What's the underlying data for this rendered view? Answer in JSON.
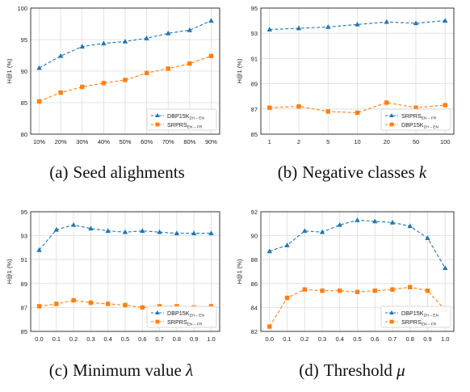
{
  "chart_data": [
    {
      "type": "line",
      "categories": [
        "10%",
        "20%",
        "30%",
        "40%",
        "50%",
        "60%",
        "70%",
        "80%",
        "90%"
      ],
      "ylabel": "H@1 (%)",
      "ylim": [
        80,
        100
      ],
      "yticks": [
        "80",
        "85",
        "90",
        "95",
        "100"
      ],
      "legend_position": "bottom-right",
      "series": [
        {
          "name_main": "DBP15K",
          "name_sub": "ZH – EN",
          "color": "#1f77b4",
          "marker": "triangle",
          "values": [
            90.5,
            92.4,
            93.9,
            94.4,
            94.7,
            95.2,
            96.0,
            96.5,
            98.0
          ]
        },
        {
          "name_main": "SRPRS",
          "name_sub": "EN – FR",
          "color": "#ff7f0e",
          "marker": "square",
          "values": [
            85.2,
            86.6,
            87.5,
            88.1,
            88.6,
            89.7,
            90.4,
            91.2,
            92.4
          ]
        }
      ],
      "caption": {
        "tag": "(a)",
        "text": "Seed alighments",
        "symbol": ""
      }
    },
    {
      "type": "line",
      "categories": [
        "1",
        "2",
        "5",
        "10",
        "20",
        "50",
        "100"
      ],
      "ylabel": "H@1 (%)",
      "ylim": [
        85,
        95
      ],
      "yticks": [
        "85",
        "87",
        "89",
        "91",
        "93",
        "95"
      ],
      "legend_position": "bottom-right",
      "series": [
        {
          "name_main": "SRPRS",
          "name_sub": "EN – FR",
          "color": "#1f77b4",
          "marker": "triangle",
          "values": [
            93.3,
            93.4,
            93.5,
            93.7,
            93.9,
            93.8,
            94.0
          ]
        },
        {
          "name_main": "DBP15K",
          "name_sub": "ZH – EN",
          "color": "#ff7f0e",
          "marker": "square",
          "values": [
            87.1,
            87.2,
            86.8,
            86.7,
            87.5,
            87.1,
            87.3
          ]
        }
      ],
      "caption": {
        "tag": "(b)",
        "text": "Negative classes ",
        "symbol": "k"
      }
    },
    {
      "type": "line",
      "categories": [
        "0.0",
        "0.1",
        "0.2",
        "0.3",
        "0.4",
        "0.5",
        "0.6",
        "0.7",
        "0.8",
        "0.9",
        "1.0"
      ],
      "ylabel": "H@1 (%)",
      "ylim": [
        85,
        95
      ],
      "yticks": [
        "85",
        "87",
        "89",
        "91",
        "93",
        "95"
      ],
      "legend_position": "bottom-right",
      "series": [
        {
          "name_main": "DBP15K",
          "name_sub": "ZH – EN",
          "color": "#1f77b4",
          "marker": "triangle",
          "values": [
            91.8,
            93.5,
            93.9,
            93.6,
            93.4,
            93.3,
            93.4,
            93.3,
            93.2,
            93.2,
            93.2
          ]
        },
        {
          "name_main": "SRPRS",
          "name_sub": "EN – FR",
          "color": "#ff7f0e",
          "marker": "square",
          "values": [
            87.1,
            87.3,
            87.6,
            87.4,
            87.3,
            87.2,
            87.0,
            87.1,
            87.1,
            87.0,
            87.1
          ]
        }
      ],
      "caption": {
        "tag": "(c)",
        "text": "Minimum value ",
        "symbol": "λ"
      }
    },
    {
      "type": "line",
      "categories": [
        "0.0",
        "0.1",
        "0.2",
        "0.3",
        "0.4",
        "0.5",
        "0.6",
        "0.7",
        "0.8",
        "0.9",
        "1.0"
      ],
      "ylabel": "H@1 (%)",
      "ylim": [
        82,
        92
      ],
      "yticks": [
        "82",
        "84",
        "86",
        "88",
        "90",
        "92"
      ],
      "legend_position": "bottom-right",
      "series": [
        {
          "name_main": "DBP15K",
          "name_sub": "ZH – EN",
          "color": "#1f77b4",
          "marker": "triangle",
          "values": [
            88.7,
            89.2,
            90.4,
            90.3,
            90.9,
            91.3,
            91.2,
            91.1,
            90.8,
            89.8,
            87.3
          ]
        },
        {
          "name_main": "SRPRS",
          "name_sub": "EN – FR",
          "color": "#ff7f0e",
          "marker": "square",
          "values": [
            82.4,
            84.8,
            85.5,
            85.4,
            85.4,
            85.3,
            85.4,
            85.5,
            85.7,
            85.4,
            83.8
          ]
        }
      ],
      "caption": {
        "tag": "(d)",
        "text": "Threshold ",
        "symbol": "μ"
      }
    }
  ]
}
